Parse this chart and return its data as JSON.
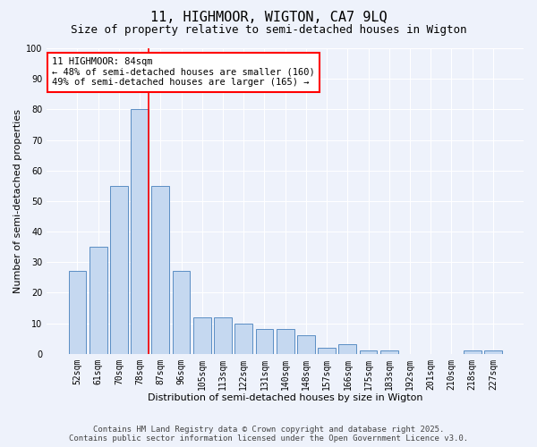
{
  "title": "11, HIGHMOOR, WIGTON, CA7 9LQ",
  "subtitle": "Size of property relative to semi-detached houses in Wigton",
  "xlabel": "Distribution of semi-detached houses by size in Wigton",
  "ylabel": "Number of semi-detached properties",
  "categories": [
    "52sqm",
    "61sqm",
    "70sqm",
    "78sqm",
    "87sqm",
    "96sqm",
    "105sqm",
    "113sqm",
    "122sqm",
    "131sqm",
    "140sqm",
    "148sqm",
    "157sqm",
    "166sqm",
    "175sqm",
    "183sqm",
    "192sqm",
    "201sqm",
    "210sqm",
    "218sqm",
    "227sqm"
  ],
  "values": [
    27,
    35,
    55,
    80,
    55,
    27,
    12,
    12,
    10,
    8,
    8,
    6,
    2,
    3,
    1,
    1,
    0,
    0,
    0,
    1,
    1
  ],
  "bar_color": "#c5d8f0",
  "bar_edge_color": "#5b8ec4",
  "highlight_line_index": 3,
  "ylim": [
    0,
    100
  ],
  "yticks": [
    0,
    10,
    20,
    30,
    40,
    50,
    60,
    70,
    80,
    90,
    100
  ],
  "annotation_title": "11 HIGHMOOR: 84sqm",
  "annotation_line1": "← 48% of semi-detached houses are smaller (160)",
  "annotation_line2": "49% of semi-detached houses are larger (165) →",
  "footer_line1": "Contains HM Land Registry data © Crown copyright and database right 2025.",
  "footer_line2": "Contains public sector information licensed under the Open Government Licence v3.0.",
  "background_color": "#eef2fb",
  "grid_color": "#ffffff",
  "title_fontsize": 11,
  "subtitle_fontsize": 9,
  "axis_label_fontsize": 8,
  "tick_fontsize": 7,
  "annotation_fontsize": 7.5,
  "footer_fontsize": 6.5
}
